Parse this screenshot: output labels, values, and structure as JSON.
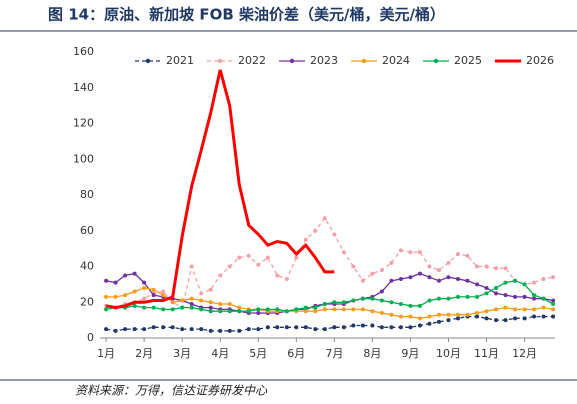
{
  "chart_data": {
    "type": "line",
    "title": "图 14：原油、新加坡 FOB 柴油价差（美元/桶，美元/桶）",
    "source": "资料来源：万得，信达证券研发中心",
    "x": [
      1,
      1.25,
      1.5,
      1.75,
      2,
      2.25,
      2.5,
      2.75,
      3,
      3.25,
      3.5,
      3.75,
      4,
      4.25,
      4.5,
      4.75,
      5,
      5.25,
      5.5,
      5.75,
      6,
      6.25,
      6.5,
      6.75,
      7,
      7.25,
      7.5,
      7.75,
      8,
      8.25,
      8.5,
      8.75,
      9,
      9.25,
      9.5,
      9.75,
      10,
      10.25,
      10.5,
      10.75,
      11,
      11.25,
      11.5,
      11.75,
      12,
      12.25,
      12.5,
      12.75
    ],
    "xlim": [
      0.84,
      12.8
    ],
    "xticks": [
      {
        "value": 1,
        "label": "1月"
      },
      {
        "value": 2,
        "label": "2月"
      },
      {
        "value": 3,
        "label": "3月"
      },
      {
        "value": 4,
        "label": "4月"
      },
      {
        "value": 5,
        "label": "5月"
      },
      {
        "value": 6,
        "label": "6月"
      },
      {
        "value": 7,
        "label": "7月"
      },
      {
        "value": 8,
        "label": "8月"
      },
      {
        "value": 9,
        "label": "9月"
      },
      {
        "value": 10,
        "label": "10月"
      },
      {
        "value": 11,
        "label": "11月"
      },
      {
        "value": 12,
        "label": "12月"
      }
    ],
    "ylim": [
      0,
      160
    ],
    "yticks": [
      0,
      20,
      40,
      60,
      80,
      100,
      120,
      140,
      160
    ],
    "grid": false,
    "legend": "top",
    "series": [
      {
        "name": "2021",
        "color": "#1f3864",
        "line_style": "dashed",
        "markers": true,
        "values": [
          5,
          4,
          5,
          5,
          5,
          6,
          6,
          6,
          5,
          5,
          5,
          4,
          4,
          4,
          4,
          5,
          5,
          6,
          6,
          6,
          6,
          6,
          5,
          5,
          6,
          6,
          7,
          7,
          7,
          6,
          6,
          6,
          6,
          7,
          8,
          9,
          10,
          11,
          12,
          12,
          11,
          10,
          10,
          11,
          11,
          12,
          12,
          12
        ]
      },
      {
        "name": "2022",
        "color": "#f4a0a8",
        "line_style": "dashed",
        "markers": true,
        "values": [
          18,
          17,
          19,
          20,
          22,
          25,
          26,
          20,
          17,
          40,
          25,
          27,
          35,
          40,
          45,
          46,
          41,
          45,
          35,
          33,
          45,
          55,
          60,
          67,
          58,
          48,
          40,
          32,
          36,
          38,
          42,
          49,
          48,
          48,
          40,
          38,
          42,
          47,
          46,
          40,
          40,
          39,
          39,
          32,
          30,
          31,
          33,
          34
        ]
      },
      {
        "name": "2023",
        "color": "#7030a0",
        "line_style": "solid",
        "markers": true,
        "values": [
          32,
          31,
          35,
          36,
          31,
          24,
          23,
          22,
          21,
          19,
          17,
          17,
          16,
          16,
          15,
          14,
          14,
          14,
          14,
          15,
          16,
          16,
          18,
          19,
          19,
          19,
          21,
          22,
          23,
          26,
          32,
          33,
          34,
          36,
          34,
          32,
          34,
          33,
          32,
          30,
          28,
          25,
          24,
          23,
          23,
          22,
          22,
          21
        ]
      },
      {
        "name": "2024",
        "color": "#f59b1f",
        "line_style": "solid",
        "markers": true,
        "values": [
          23,
          23,
          24,
          26,
          28,
          27,
          24,
          20,
          21,
          22,
          21,
          20,
          19,
          19,
          17,
          16,
          16,
          15,
          15,
          15,
          15,
          15,
          15,
          16,
          16,
          16,
          16,
          16,
          15,
          14,
          13,
          12,
          12,
          11,
          12,
          13,
          13,
          13,
          13,
          14,
          15,
          16,
          17,
          16,
          16,
          16,
          17,
          16
        ]
      },
      {
        "name": "2025",
        "color": "#00b050",
        "line_style": "solid",
        "markers": true,
        "values": [
          16,
          17,
          17,
          18,
          17,
          17,
          16,
          16,
          17,
          17,
          16,
          15,
          15,
          15,
          15,
          15,
          16,
          16,
          16,
          15,
          16,
          17,
          17,
          19,
          20,
          20,
          21,
          22,
          22,
          21,
          20,
          19,
          18,
          18,
          21,
          22,
          22,
          23,
          23,
          23,
          25,
          28,
          31,
          32,
          30,
          24,
          22,
          19
        ]
      },
      {
        "name": "2026",
        "color": "#ff0000",
        "line_style": "solid",
        "markers": false,
        "width": 3,
        "values": [
          18,
          17,
          18,
          20,
          20,
          21,
          21,
          23,
          57,
          85,
          105,
          126,
          150,
          130,
          86,
          63,
          58,
          52,
          54,
          53,
          47,
          52,
          45,
          37,
          37,
          null,
          null,
          null,
          null,
          null,
          null,
          null,
          null,
          null,
          null,
          null,
          null,
          null,
          null,
          null,
          null,
          null,
          null,
          null,
          null,
          null,
          null,
          null
        ]
      }
    ]
  }
}
